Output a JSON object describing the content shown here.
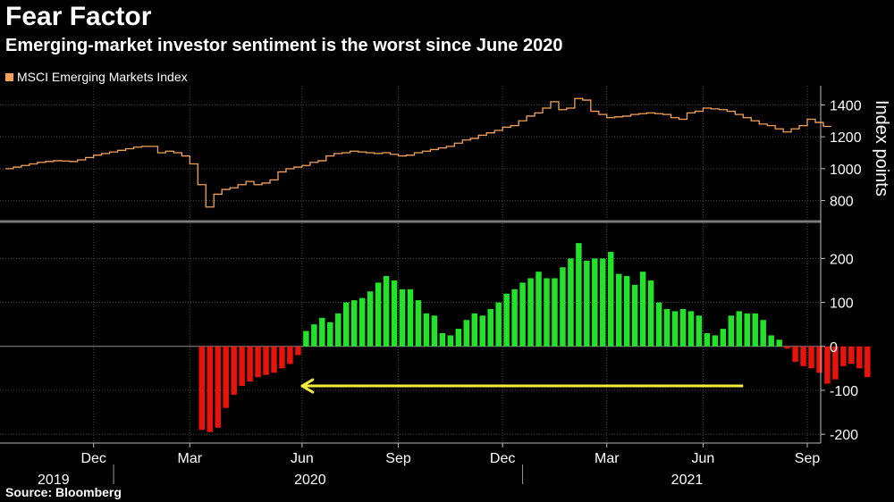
{
  "title": "Fear Factor",
  "subtitle": "Emerging-market investor sentiment is the worst since June 2020",
  "source": "Source: Bloomberg",
  "colors": {
    "index_line": "#f4a259",
    "positive_bar": "#22e32a",
    "negative_bar": "#e8140c",
    "arrow": "#f2ef3c",
    "grid": "#4a4a4a",
    "zero_line": "#8c8c8c",
    "panel_divider": "#7a7a7a"
  },
  "chart_data": [
    {
      "type": "line",
      "name": "index-panel",
      "legend": [
        "MSCI Emerging Markets Index"
      ],
      "ylabel": "Index points",
      "ylim": [
        680,
        1520
      ],
      "yticks": [
        800,
        1000,
        1200,
        1400
      ],
      "x_range_weeks": [
        0,
        101
      ],
      "series": [
        {
          "name": "MSCI Emerging Markets Index",
          "step": true,
          "values": [
            1000,
            1010,
            1020,
            1030,
            1040,
            1045,
            1050,
            1048,
            1045,
            1055,
            1070,
            1085,
            1095,
            1105,
            1115,
            1125,
            1135,
            1140,
            1140,
            1100,
            1110,
            1100,
            1080,
            1030,
            900,
            760,
            840,
            870,
            880,
            900,
            920,
            900,
            910,
            930,
            980,
            1000,
            1010,
            1020,
            1040,
            1050,
            1080,
            1095,
            1100,
            1110,
            1105,
            1100,
            1095,
            1100,
            1090,
            1080,
            1085,
            1100,
            1110,
            1120,
            1130,
            1140,
            1160,
            1180,
            1190,
            1210,
            1225,
            1240,
            1260,
            1270,
            1300,
            1330,
            1350,
            1380,
            1420,
            1370,
            1380,
            1440,
            1430,
            1360,
            1340,
            1320,
            1325,
            1330,
            1340,
            1345,
            1350,
            1345,
            1340,
            1320,
            1310,
            1350,
            1360,
            1380,
            1375,
            1370,
            1360,
            1340,
            1320,
            1300,
            1280,
            1270,
            1250,
            1230,
            1250,
            1270,
            1310,
            1290,
            1265
          ]
        }
      ]
    },
    {
      "type": "bar",
      "name": "sentiment-panel",
      "ylim": [
        -220,
        280
      ],
      "yticks": [
        -200,
        -100,
        0,
        100,
        200
      ],
      "x_range_weeks": [
        0,
        101
      ],
      "first_bar_week": 24,
      "values": [
        -190,
        -195,
        -185,
        -140,
        -110,
        -90,
        -80,
        -70,
        -65,
        -60,
        -50,
        -40,
        -20,
        35,
        50,
        65,
        55,
        75,
        100,
        105,
        110,
        125,
        145,
        160,
        150,
        130,
        130,
        105,
        75,
        70,
        30,
        25,
        40,
        60,
        75,
        70,
        85,
        100,
        120,
        130,
        145,
        155,
        170,
        155,
        155,
        180,
        200,
        235,
        195,
        200,
        200,
        215,
        165,
        160,
        140,
        170,
        150,
        100,
        85,
        80,
        85,
        80,
        70,
        30,
        25,
        40,
        70,
        80,
        75,
        75,
        60,
        25,
        15,
        -5,
        -35,
        -45,
        -50,
        -60,
        -85,
        -75,
        -45,
        -40,
        -50,
        -70
      ],
      "arrow": {
        "from_week": 92,
        "to_week": 37,
        "y": -90
      }
    }
  ],
  "x_axis": {
    "months": [
      {
        "label": "Dec",
        "week": 11
      },
      {
        "label": "Mar",
        "week": 23
      },
      {
        "label": "Jun",
        "week": 37
      },
      {
        "label": "Sep",
        "week": 49
      },
      {
        "label": "Dec",
        "week": 62
      },
      {
        "label": "Mar",
        "week": 75
      },
      {
        "label": "Jun",
        "week": 87
      },
      {
        "label": "Sep",
        "week": 100
      }
    ],
    "years": [
      {
        "label": "2019",
        "week": 6
      },
      {
        "label": "2020",
        "week": 38
      },
      {
        "label": "2021",
        "week": 85
      }
    ],
    "year_dividers_week": [
      13.5,
      64.5
    ]
  }
}
